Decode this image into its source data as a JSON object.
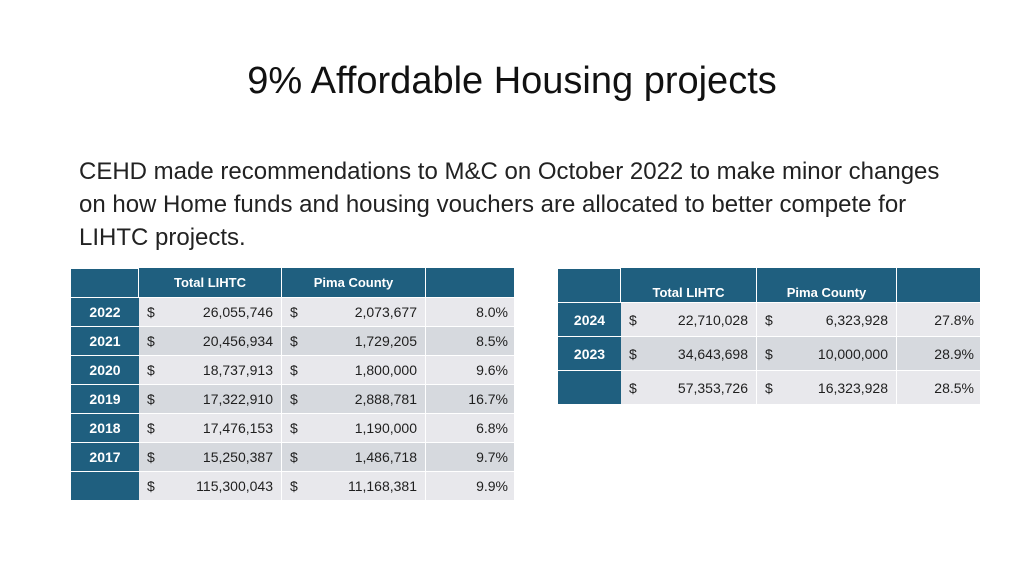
{
  "title": "9% Affordable Housing projects",
  "body": "CEHD made recommendations to M&C on October 2022 to make minor changes on how Home funds and housing vouchers are allocated to better compete for LIHTC projects.",
  "table1": {
    "headers": [
      "",
      "Total LIHTC",
      "Pima County",
      ""
    ],
    "rows": [
      {
        "year": "2022",
        "lihtc": "26,055,746",
        "pima": "2,073,677",
        "pct": "8.0%"
      },
      {
        "year": "2021",
        "lihtc": "20,456,934",
        "pima": "1,729,205",
        "pct": "8.5%"
      },
      {
        "year": "2020",
        "lihtc": "18,737,913",
        "pima": "1,800,000",
        "pct": "9.6%"
      },
      {
        "year": "2019",
        "lihtc": "17,322,910",
        "pima": "2,888,781",
        "pct": "16.7%"
      },
      {
        "year": "2018",
        "lihtc": "17,476,153",
        "pima": "1,190,000",
        "pct": "6.8%"
      },
      {
        "year": "2017",
        "lihtc": "15,250,387",
        "pima": "1,486,718",
        "pct": "9.7%"
      },
      {
        "year": "",
        "lihtc": "115,300,043",
        "pima": "11,168,381",
        "pct": "9.9%"
      }
    ]
  },
  "table2": {
    "headers": [
      "",
      "Total LIHTC",
      "Pima County",
      ""
    ],
    "rows": [
      {
        "year": "2024",
        "lihtc": "22,710,028",
        "pima": "6,323,928",
        "pct": "27.8%"
      },
      {
        "year": "2023",
        "lihtc": "34,643,698",
        "pima": "10,000,000",
        "pct": "28.9%"
      },
      {
        "year": "",
        "lihtc": "57,353,726",
        "pima": "16,323,928",
        "pct": "28.5%"
      }
    ]
  },
  "currency": "$"
}
